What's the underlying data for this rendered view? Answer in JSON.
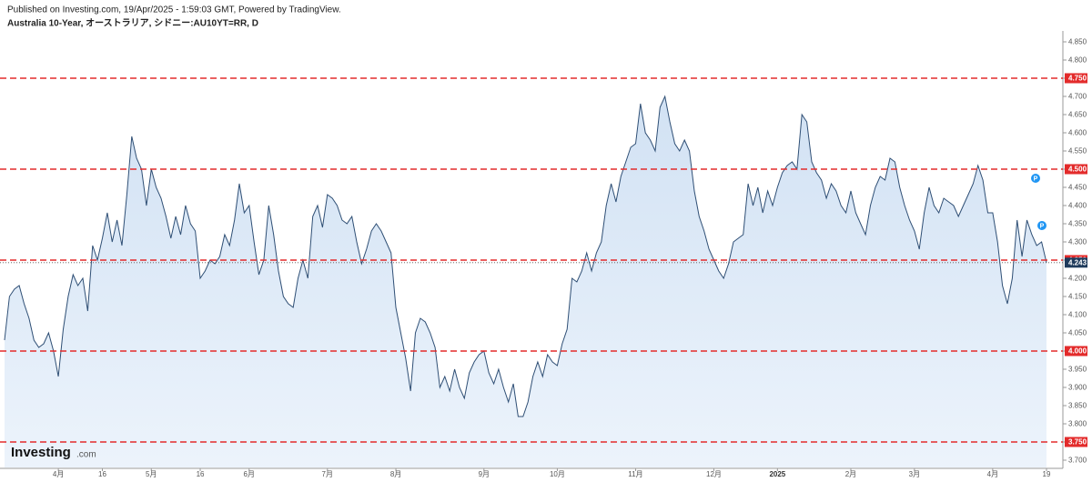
{
  "header": {
    "published": "Published on Investing.com, 19/Apr/2025 - 1:59:03 GMT, Powered by TradingView.",
    "instrument": "Australia 10-Year, オーストラリア, シドニー:AU10YT=RR, D"
  },
  "logo": {
    "brand": "Investing",
    "suffix": ".com"
  },
  "chart_data": {
    "type": "area",
    "color": "#2f4f75",
    "fill": "#dbe8f6",
    "hline_color": "#e32b2b",
    "last_color": "#1f3b5c",
    "categories": [
      null,
      null,
      null,
      null,
      null,
      null,
      null,
      null,
      null,
      null,
      null,
      "4月",
      null,
      null,
      null,
      null,
      null,
      null,
      null,
      null,
      "16",
      null,
      null,
      null,
      null,
      null,
      null,
      null,
      null,
      null,
      "5月",
      null,
      null,
      null,
      null,
      null,
      null,
      null,
      null,
      null,
      "16",
      null,
      null,
      null,
      null,
      null,
      null,
      null,
      null,
      null,
      "6月",
      null,
      null,
      null,
      null,
      null,
      null,
      null,
      null,
      null,
      null,
      null,
      null,
      null,
      null,
      null,
      "7月",
      null,
      null,
      null,
      null,
      null,
      null,
      null,
      null,
      null,
      null,
      null,
      null,
      null,
      "8月",
      null,
      null,
      null,
      null,
      null,
      null,
      null,
      null,
      null,
      null,
      null,
      null,
      null,
      null,
      null,
      null,
      null,
      "9月",
      null,
      null,
      null,
      null,
      null,
      null,
      null,
      null,
      null,
      null,
      null,
      null,
      null,
      null,
      "10月",
      null,
      null,
      null,
      null,
      null,
      null,
      null,
      null,
      null,
      null,
      null,
      null,
      null,
      null,
      null,
      "11月",
      null,
      null,
      null,
      null,
      null,
      null,
      null,
      null,
      null,
      null,
      null,
      null,
      null,
      null,
      null,
      "12月",
      null,
      null,
      null,
      null,
      null,
      null,
      null,
      null,
      null,
      null,
      null,
      null,
      "2025",
      null,
      null,
      null,
      null,
      null,
      null,
      null,
      null,
      null,
      null,
      null,
      null,
      null,
      null,
      "2月",
      null,
      null,
      null,
      null,
      null,
      null,
      null,
      null,
      null,
      null,
      null,
      null,
      "3月",
      null,
      null,
      null,
      null,
      null,
      null,
      null,
      null,
      null,
      null,
      null,
      null,
      null,
      null,
      null,
      "4月",
      null,
      null,
      null,
      null,
      null,
      null,
      null,
      null,
      null,
      null,
      "19"
    ],
    "values": [
      4.03,
      4.15,
      4.17,
      4.18,
      4.13,
      4.09,
      4.03,
      4.01,
      4.02,
      4.05,
      4.0,
      3.93,
      4.06,
      4.15,
      4.21,
      4.18,
      4.2,
      4.11,
      4.29,
      4.25,
      4.31,
      4.38,
      4.3,
      4.36,
      4.29,
      4.43,
      4.59,
      4.53,
      4.5,
      4.4,
      4.5,
      4.45,
      4.42,
      4.37,
      4.31,
      4.37,
      4.32,
      4.4,
      4.35,
      4.33,
      4.2,
      4.22,
      4.25,
      4.24,
      4.26,
      4.32,
      4.29,
      4.36,
      4.46,
      4.38,
      4.4,
      4.3,
      4.21,
      4.25,
      4.4,
      4.32,
      4.22,
      4.15,
      4.13,
      4.12,
      4.2,
      4.25,
      4.2,
      4.37,
      4.4,
      4.34,
      4.43,
      4.42,
      4.4,
      4.36,
      4.35,
      4.37,
      4.3,
      4.24,
      4.28,
      4.33,
      4.35,
      4.33,
      4.3,
      4.27,
      4.12,
      4.05,
      3.98,
      3.89,
      4.05,
      4.09,
      4.08,
      4.05,
      4.01,
      3.9,
      3.93,
      3.89,
      3.95,
      3.9,
      3.87,
      3.94,
      3.97,
      3.99,
      4.0,
      3.94,
      3.91,
      3.95,
      3.9,
      3.86,
      3.91,
      3.82,
      3.82,
      3.86,
      3.93,
      3.97,
      3.93,
      3.99,
      3.97,
      3.96,
      4.02,
      4.06,
      4.2,
      4.19,
      4.22,
      4.27,
      4.22,
      4.27,
      4.3,
      4.4,
      4.46,
      4.41,
      4.48,
      4.52,
      4.56,
      4.57,
      4.68,
      4.6,
      4.58,
      4.55,
      4.67,
      4.7,
      4.63,
      4.57,
      4.55,
      4.58,
      4.55,
      4.44,
      4.37,
      4.33,
      4.28,
      4.25,
      4.22,
      4.2,
      4.24,
      4.3,
      4.31,
      4.32,
      4.46,
      4.4,
      4.45,
      4.38,
      4.44,
      4.4,
      4.45,
      4.49,
      4.51,
      4.52,
      4.5,
      4.65,
      4.63,
      4.52,
      4.49,
      4.47,
      4.42,
      4.46,
      4.44,
      4.4,
      4.38,
      4.44,
      4.38,
      4.35,
      4.32,
      4.4,
      4.45,
      4.48,
      4.47,
      4.53,
      4.52,
      4.45,
      4.4,
      4.36,
      4.33,
      4.28,
      4.38,
      4.45,
      4.4,
      4.38,
      4.42,
      4.41,
      4.4,
      4.37,
      4.4,
      4.43,
      4.46,
      4.51,
      4.47,
      4.38,
      4.38,
      4.3,
      4.18,
      4.13,
      4.2,
      4.36,
      4.26,
      4.36,
      4.32,
      4.29,
      4.3,
      4.243
    ],
    "ylim": [
      3.68,
      4.88
    ],
    "yticks": [
      {
        "value": 3.7,
        "label": "3.700"
      },
      {
        "value": 3.75,
        "label": "3.750"
      },
      {
        "value": 3.8,
        "label": "3.800"
      },
      {
        "value": 3.85,
        "label": "3.850"
      },
      {
        "value": 3.9,
        "label": "3.900"
      },
      {
        "value": 3.95,
        "label": "3.950"
      },
      {
        "value": 4.0,
        "label": "4.000"
      },
      {
        "value": 4.05,
        "label": "4.050"
      },
      {
        "value": 4.1,
        "label": "4.100"
      },
      {
        "value": 4.15,
        "label": "4.150"
      },
      {
        "value": 4.2,
        "label": "4.200"
      },
      {
        "value": 4.25,
        "label": "4.250"
      },
      {
        "value": 4.3,
        "label": "4.300"
      },
      {
        "value": 4.35,
        "label": "4.350"
      },
      {
        "value": 4.4,
        "label": "4.400"
      },
      {
        "value": 4.45,
        "label": "4.450"
      },
      {
        "value": 4.5,
        "label": "4.500"
      },
      {
        "value": 4.55,
        "label": "4.550"
      },
      {
        "value": 4.6,
        "label": "4.600"
      },
      {
        "value": 4.65,
        "label": "4.650"
      },
      {
        "value": 4.7,
        "label": "4.700"
      },
      {
        "value": 4.75,
        "label": "4.750"
      },
      {
        "value": 4.8,
        "label": "4.800"
      },
      {
        "value": 4.85,
        "label": "4.850"
      }
    ],
    "hlines": [
      4.75,
      4.5,
      4.25,
      4.0,
      3.75
    ],
    "events": [
      "P",
      "P"
    ]
  }
}
